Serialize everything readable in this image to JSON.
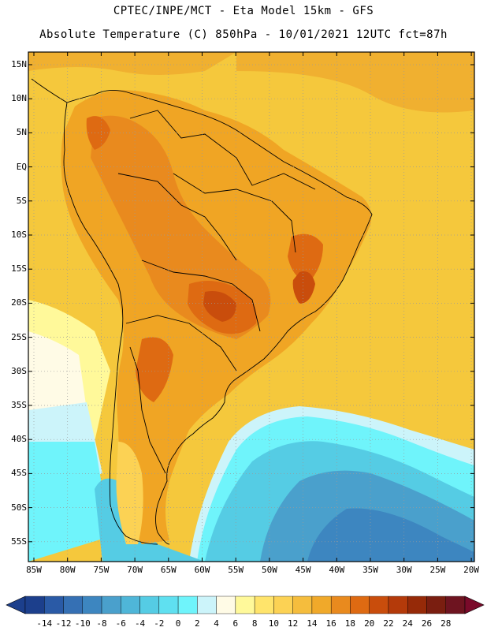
{
  "title_line1": "CPTEC/INPE/MCT -  Eta Model 15km - GFS",
  "title_line2": "Absolute Temperature (C) 850hPa - 10/01/2021 12UTC fct=87h",
  "lat_labels": [
    "15N",
    "10N",
    "5N",
    "EQ",
    "5S",
    "10S",
    "15S",
    "20S",
    "25S",
    "30S",
    "35S",
    "40S",
    "45S",
    "50S",
    "55S"
  ],
  "lon_labels": [
    "85W",
    "80W",
    "75W",
    "70W",
    "65W",
    "60W",
    "55W",
    "50W",
    "45W",
    "40W",
    "35W",
    "30W",
    "25W",
    "20W"
  ],
  "colorbar": {
    "labels": [
      "-14",
      "-12",
      "-10",
      "-8",
      "-6",
      "-4",
      "-2",
      "0",
      "2",
      "4",
      "6",
      "8",
      "10",
      "12",
      "14",
      "16",
      "18",
      "20",
      "22",
      "24",
      "26",
      "28"
    ],
    "colors": [
      "#1c3f8c",
      "#2a5aa6",
      "#3570b4",
      "#3d86c0",
      "#4aa0cc",
      "#4fb6d8",
      "#55cce4",
      "#5fe0f0",
      "#6ff4fb",
      "#ccf4fa",
      "#fffbe6",
      "#fff99a",
      "#ffe46b",
      "#fcd254",
      "#f5bd3d",
      "#f0a92a",
      "#e98a1e",
      "#de6a12",
      "#c94d0c",
      "#b43a0a",
      "#962a08",
      "#7a1e10",
      "#6e1420"
    ]
  },
  "legend_colors": {
    "ocean_warm": "#f5c83c",
    "land": "#f0a524",
    "hot": "#de6a12",
    "cold_sea": "#55cce4",
    "deep_cold": "#3d86c0"
  }
}
